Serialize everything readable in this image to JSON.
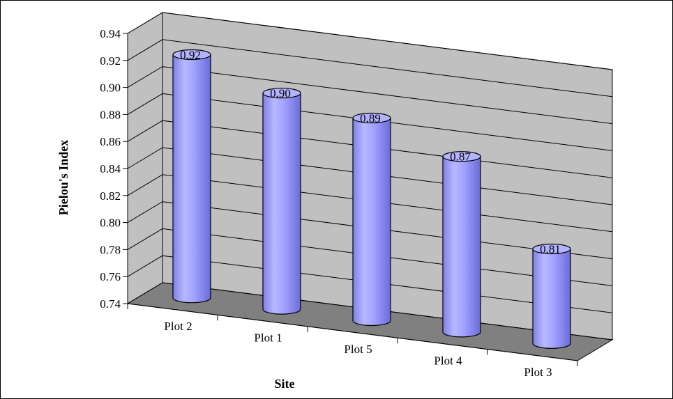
{
  "chart_data": {
    "type": "bar",
    "categories": [
      "Plot 2",
      "Plot 1",
      "Plot 5",
      "Plot 4",
      "Plot 3"
    ],
    "values": [
      0.92,
      0.9,
      0.89,
      0.87,
      0.81
    ],
    "data_labels": [
      "0.92",
      "0.90",
      "0.89",
      "0.87",
      "0.81"
    ],
    "xlabel": "Site",
    "ylabel": "Pielou's Index",
    "ylim": [
      0.74,
      0.94
    ],
    "yticks": [
      "0.74",
      "0.76",
      "0.78",
      "0.80",
      "0.82",
      "0.84",
      "0.86",
      "0.88",
      "0.90",
      "0.92",
      "0.94"
    ],
    "grid": true,
    "legend": "none",
    "style": "3d-cylinder",
    "colors": {
      "bar": "#9999ff",
      "wall": "#c0c0c0",
      "floor": "#808080"
    }
  }
}
